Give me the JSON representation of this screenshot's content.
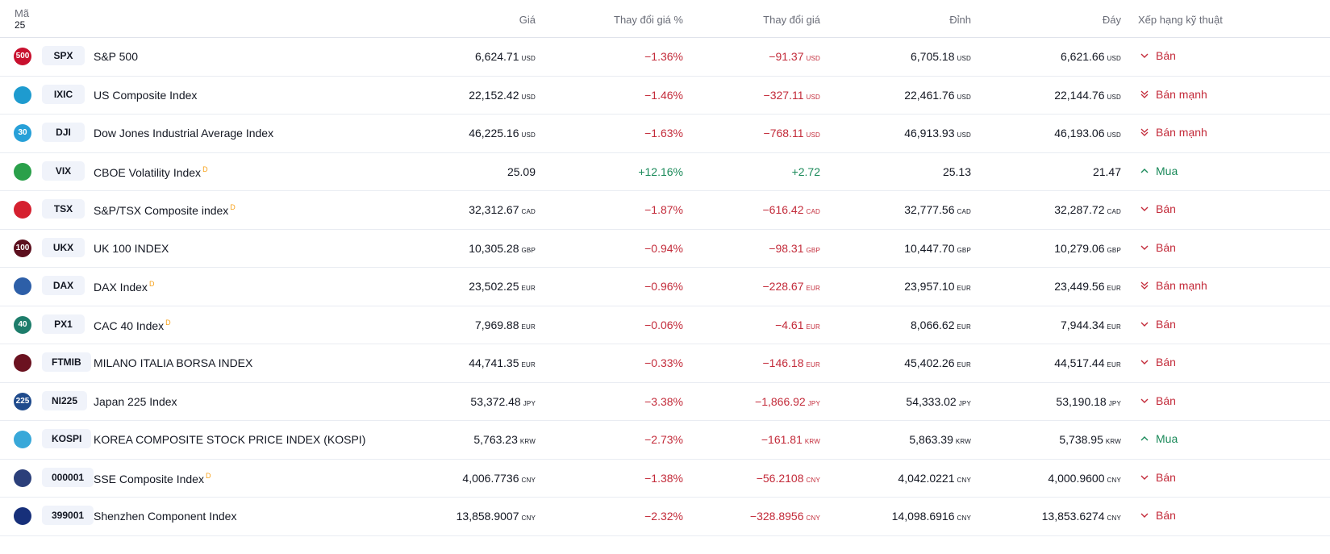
{
  "header": {
    "symbol_label": "Mã",
    "count": "25",
    "price": "Giá",
    "change_pct": "Thay đổi giá %",
    "change": "Thay đổi giá",
    "high": "Đỉnh",
    "low": "Đáy",
    "rating": "Xếp hạng kỹ thuật"
  },
  "rows": [
    {
      "logo_text": "500",
      "logo_color": "#c8102e",
      "ticker": "SPX",
      "name": "S&P 500",
      "flag": "",
      "price": "6,624.71",
      "cur": "USD",
      "pct": "−1.36%",
      "chg": "−91.37",
      "high": "6,705.18",
      "low": "6,621.66",
      "rating": "Bán",
      "rating_icon": "chevron-down-icon",
      "dir": "neg"
    },
    {
      "logo_text": "",
      "logo_color": "#1e9bcf",
      "ticker": "IXIC",
      "name": "US Composite Index",
      "flag": "",
      "price": "22,152.42",
      "cur": "USD",
      "pct": "−1.46%",
      "chg": "−327.11",
      "high": "22,461.76",
      "low": "22,144.76",
      "rating": "Bán mạnh",
      "rating_icon": "double-chevron-down-icon",
      "dir": "neg"
    },
    {
      "logo_text": "30",
      "logo_color": "#27a0d8",
      "ticker": "DJI",
      "name": "Dow Jones Industrial Average Index",
      "flag": "",
      "price": "46,225.16",
      "cur": "USD",
      "pct": "−1.63%",
      "chg": "−768.11",
      "high": "46,913.93",
      "low": "46,193.06",
      "rating": "Bán mạnh",
      "rating_icon": "double-chevron-down-icon",
      "dir": "neg"
    },
    {
      "logo_text": "",
      "logo_color": "#2aa04a",
      "ticker": "VIX",
      "name": "CBOE Volatility Index",
      "flag": "D",
      "price": "25.09",
      "cur": "",
      "pct": "+12.16%",
      "chg": "+2.72",
      "high": "25.13",
      "low": "21.47",
      "rating": "Mua",
      "rating_icon": "chevron-up-icon",
      "dir": "pos"
    },
    {
      "logo_text": "",
      "logo_color": "#d5202f",
      "ticker": "TSX",
      "name": "S&P/TSX Composite index",
      "flag": "D",
      "price": "32,312.67",
      "cur": "CAD",
      "pct": "−1.87%",
      "chg": "−616.42",
      "high": "32,777.56",
      "low": "32,287.72",
      "rating": "Bán",
      "rating_icon": "chevron-down-icon",
      "dir": "neg"
    },
    {
      "logo_text": "100",
      "logo_color": "#5c0f1e",
      "ticker": "UKX",
      "name": "UK 100 INDEX",
      "flag": "",
      "price": "10,305.28",
      "cur": "GBP",
      "pct": "−0.94%",
      "chg": "−98.31",
      "high": "10,447.70",
      "low": "10,279.06",
      "rating": "Bán",
      "rating_icon": "chevron-down-icon",
      "dir": "neg"
    },
    {
      "logo_text": "",
      "logo_color": "#2d5fa8",
      "ticker": "DAX",
      "name": "DAX Index",
      "flag": "D",
      "price": "23,502.25",
      "cur": "EUR",
      "pct": "−0.96%",
      "chg": "−228.67",
      "high": "23,957.10",
      "low": "23,449.56",
      "rating": "Bán mạnh",
      "rating_icon": "double-chevron-down-icon",
      "dir": "neg"
    },
    {
      "logo_text": "40",
      "logo_color": "#1d7d6b",
      "ticker": "PX1",
      "name": "CAC 40 Index",
      "flag": "D",
      "price": "7,969.88",
      "cur": "EUR",
      "pct": "−0.06%",
      "chg": "−4.61",
      "high": "8,066.62",
      "low": "7,944.34",
      "rating": "Bán",
      "rating_icon": "chevron-down-icon",
      "dir": "neg"
    },
    {
      "logo_text": "",
      "logo_color": "#6b1220",
      "ticker": "FTMIB",
      "name": "MILANO ITALIA BORSA INDEX",
      "flag": "",
      "price": "44,741.35",
      "cur": "EUR",
      "pct": "−0.33%",
      "chg": "−146.18",
      "high": "45,402.26",
      "low": "44,517.44",
      "rating": "Bán",
      "rating_icon": "chevron-down-icon",
      "dir": "neg"
    },
    {
      "logo_text": "225",
      "logo_color": "#1f4b8c",
      "ticker": "NI225",
      "name": "Japan 225 Index",
      "flag": "",
      "price": "53,372.48",
      "cur": "JPY",
      "pct": "−3.38%",
      "chg": "−1,866.92",
      "high": "54,333.02",
      "low": "53,190.18",
      "rating": "Bán",
      "rating_icon": "chevron-down-icon",
      "dir": "neg"
    },
    {
      "logo_text": "",
      "logo_color": "#38a8d9",
      "ticker": "KOSPI",
      "name": "KOREA COMPOSITE STOCK PRICE INDEX (KOSPI)",
      "flag": "",
      "price": "5,763.23",
      "cur": "KRW",
      "pct": "−2.73%",
      "chg": "−161.81",
      "high": "5,863.39",
      "low": "5,738.95",
      "rating": "Mua",
      "rating_icon": "chevron-up-icon",
      "dir": "neg"
    },
    {
      "logo_text": "",
      "logo_color": "#2b3f7a",
      "ticker": "000001",
      "name": "SSE Composite Index",
      "flag": "D",
      "price": "4,006.7736",
      "cur": "CNY",
      "pct": "−1.38%",
      "chg": "−56.2108",
      "high": "4,042.0221",
      "low": "4,000.9600",
      "rating": "Bán",
      "rating_icon": "chevron-down-icon",
      "dir": "neg"
    },
    {
      "logo_text": "",
      "logo_color": "#17307a",
      "ticker": "399001",
      "name": "Shenzhen Component Index",
      "flag": "",
      "price": "13,858.9007",
      "cur": "CNY",
      "pct": "−2.32%",
      "chg": "−328.8956",
      "high": "14,098.6916",
      "low": "13,853.6274",
      "rating": "Bán",
      "rating_icon": "chevron-down-icon",
      "dir": "neg"
    }
  ],
  "colors": {
    "negative": "#c32b3a",
    "positive": "#1b8a5a",
    "flag": "#f7a21b"
  }
}
